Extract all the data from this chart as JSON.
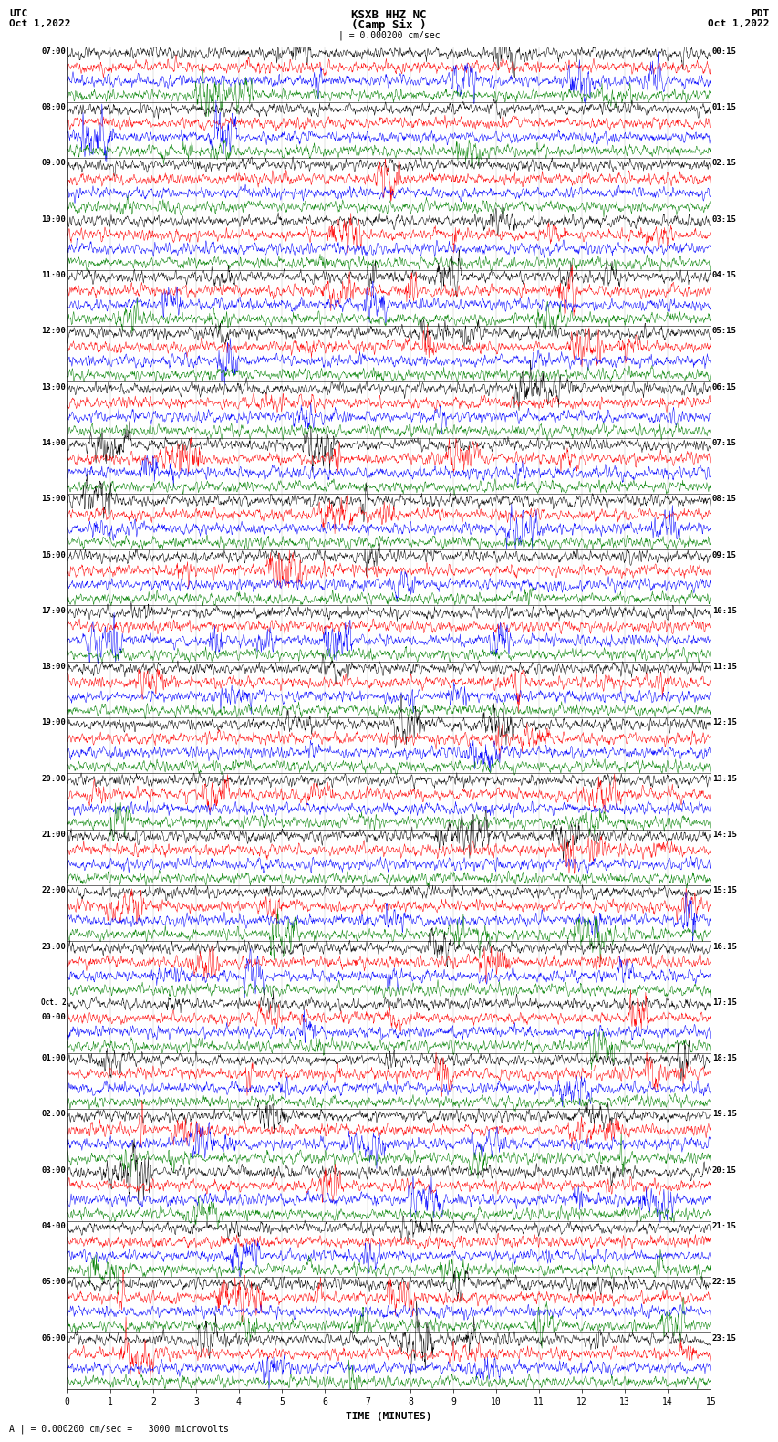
{
  "title": "KSXB HHZ NC",
  "subtitle": "(Camp Six )",
  "utc_label": "UTC",
  "utc_date": "Oct 1,2022",
  "pdt_label": "PDT",
  "pdt_date": "Oct 1,2022",
  "scale_text": "| = 0.000200 cm/sec",
  "bottom_label": "A | = 0.000200 cm/sec =   3000 microvolts",
  "xlabel": "TIME (MINUTES)",
  "colors": [
    "black",
    "red",
    "blue",
    "green"
  ],
  "bg_color": "white",
  "figsize": [
    8.5,
    16.13
  ],
  "dpi": 100,
  "n_rows": 48,
  "traces_per_row": 4,
  "xlim": [
    0,
    15
  ],
  "xticks": [
    0,
    1,
    2,
    3,
    4,
    5,
    6,
    7,
    8,
    9,
    10,
    11,
    12,
    13,
    14,
    15
  ],
  "left_times": [
    "07:00",
    "08:00",
    "09:00",
    "10:00",
    "11:00",
    "12:00",
    "13:00",
    "14:00",
    "15:00",
    "16:00",
    "17:00",
    "18:00",
    "19:00",
    "20:00",
    "21:00",
    "22:00",
    "23:00",
    "Oct. 2\n00:00",
    "01:00",
    "02:00",
    "03:00",
    "04:00",
    "05:00",
    "06:00"
  ],
  "right_times": [
    "00:15",
    "01:15",
    "02:15",
    "03:15",
    "04:15",
    "05:15",
    "06:15",
    "07:15",
    "08:15",
    "09:15",
    "10:15",
    "11:15",
    "12:15",
    "13:15",
    "14:15",
    "15:15",
    "16:15",
    "17:15",
    "18:15",
    "19:15",
    "20:15",
    "21:15",
    "22:15",
    "23:15"
  ],
  "trace_amp": 0.38,
  "seed": 42
}
